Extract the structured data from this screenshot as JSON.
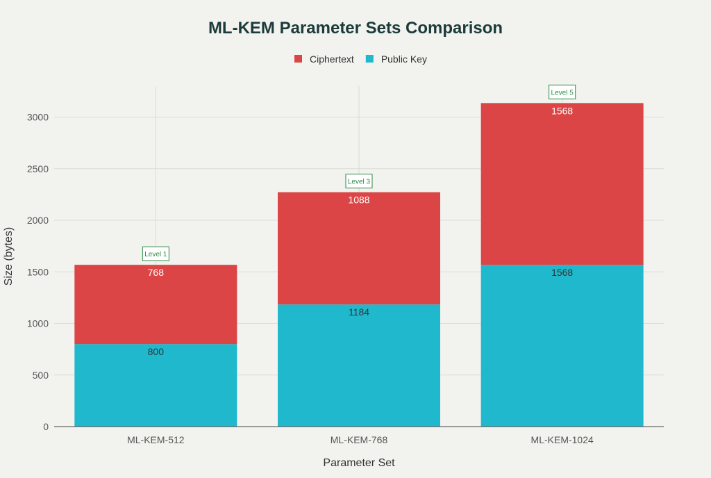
{
  "chart_data": {
    "type": "bar",
    "stacked": true,
    "title": "ML-KEM Parameter Sets Comparison",
    "xlabel": "Parameter Set",
    "ylabel": "Size (bytes)",
    "categories": [
      "ML-KEM-512",
      "ML-KEM-768",
      "ML-KEM-1024"
    ],
    "series": [
      {
        "name": "Public Key",
        "values": [
          800,
          1184,
          1568
        ],
        "color": "#1fb8cd",
        "label_color": "#333333"
      },
      {
        "name": "Ciphertext",
        "values": [
          768,
          1088,
          1568
        ],
        "color": "#db4545",
        "label_color": "#ffffff"
      }
    ],
    "legend_order": [
      "Ciphertext",
      "Public Key"
    ],
    "legend_placement": "top-center",
    "annotations": [
      "Level 1",
      "Level 3",
      "Level 5"
    ],
    "annotation_color": "#2e8b47",
    "yticks": [
      0,
      500,
      1000,
      1500,
      2000,
      2500,
      3000
    ],
    "ylim": [
      0,
      3300
    ],
    "grid": true
  }
}
